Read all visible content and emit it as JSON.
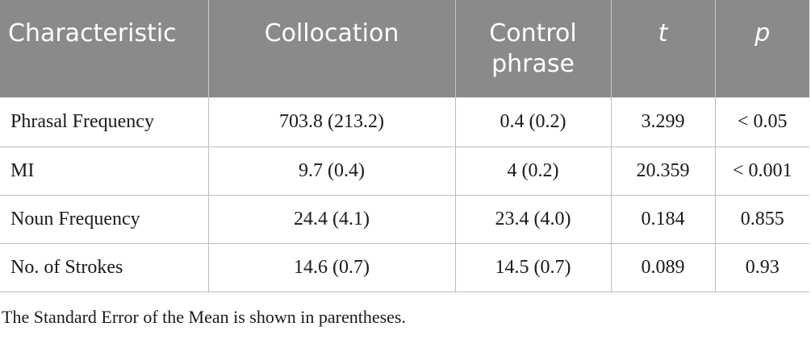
{
  "table": {
    "headers": [
      {
        "label": "Characteristic"
      },
      {
        "label": "Collocation"
      },
      {
        "label": "Control phrase"
      },
      {
        "label": "t"
      },
      {
        "label": "p"
      }
    ],
    "rows": [
      {
        "characteristic": "Phrasal Frequency",
        "collocation": "703.8 (213.2)",
        "control": "0.4 (0.2)",
        "t": "3.299",
        "p": "< 0.05"
      },
      {
        "characteristic": "MI",
        "collocation": "9.7 (0.4)",
        "control": "4 (0.2)",
        "t": "20.359",
        "p": "< 0.001"
      },
      {
        "characteristic": "Noun Frequency",
        "collocation": "24.4 (4.1)",
        "control": "23.4 (4.0)",
        "t": "0.184",
        "p": "0.855"
      },
      {
        "characteristic": "No. of Strokes",
        "collocation": "14.6 (0.7)",
        "control": "14.5 (0.7)",
        "t": "0.089",
        "p": "0.93"
      }
    ]
  },
  "footnote": "The Standard Error of the Mean is shown in parentheses.",
  "colors": {
    "header_background": "#8a8a8a",
    "header_text": "#ffffff",
    "border": "#bdbdbd",
    "body_text": "#1a1a1a"
  }
}
